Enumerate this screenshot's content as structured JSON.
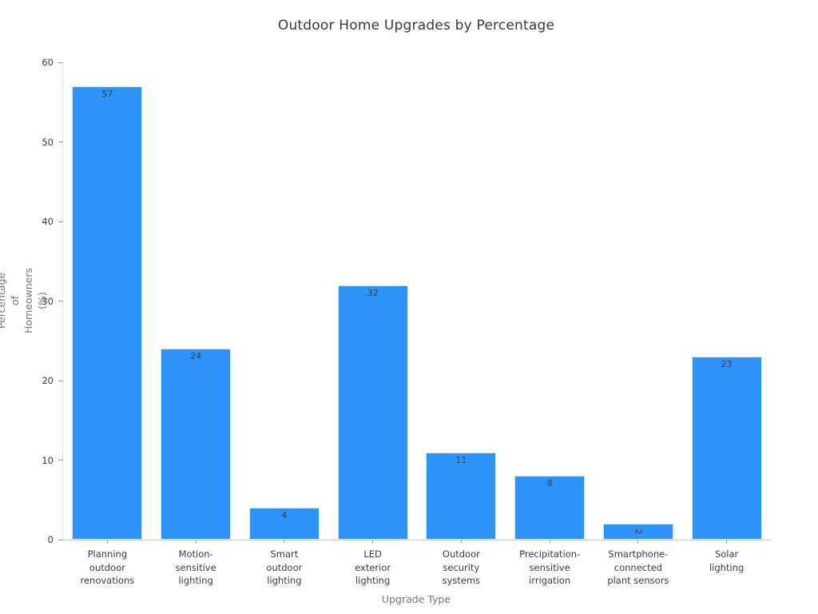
{
  "chart_data": {
    "type": "bar",
    "title": "Outdoor Home Upgrades by Percentage",
    "xlabel": "Upgrade Type",
    "ylabel": "Percentage of\nHomeowners (%)",
    "categories": [
      "Planning\noutdoor\nrenovations",
      "Motion-\nsensitive\nlighting",
      "Smart\noutdoor\nlighting",
      "LED\nexterior\nlighting",
      "Outdoor\nsecurity\nsystems",
      "Precipitation-\nsensitive\nirrigation",
      "Smartphone-\nconnected\nplant sensors",
      "Solar\nlighting"
    ],
    "values": [
      57,
      24,
      4,
      32,
      11,
      8,
      2,
      23
    ],
    "ylim": [
      0,
      60
    ],
    "yticks": [
      0,
      10,
      20,
      30,
      40,
      50,
      60
    ],
    "grid": false,
    "legend": null,
    "bar_color": "#2e93f8",
    "bar_edge_color": "#d2e9fc",
    "value_label_rotation_deg": [
      0,
      0,
      0,
      0,
      0,
      0,
      90,
      0
    ]
  }
}
